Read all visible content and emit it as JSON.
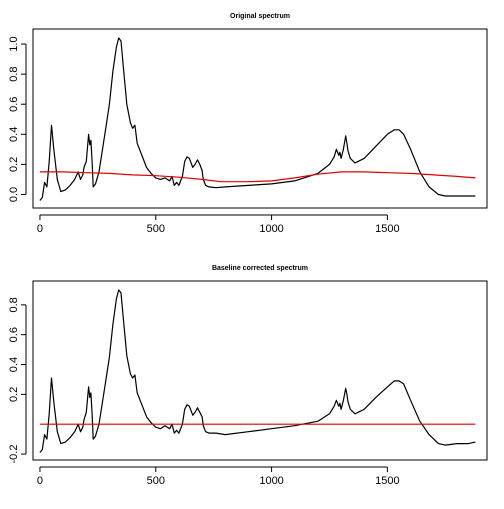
{
  "chart_data": [
    {
      "type": "line",
      "title": "Original spectrum",
      "xlabel": "",
      "ylabel": "",
      "xlim": [
        -30,
        1930
      ],
      "ylim": [
        -0.09,
        1.1
      ],
      "x_ticks": [
        0,
        500,
        1000,
        1500
      ],
      "x_tick_labels": [
        "0",
        "500",
        "1000",
        "1500"
      ],
      "y_ticks": [
        0.0,
        0.2,
        0.4,
        0.6,
        0.8,
        1.0
      ],
      "y_tick_labels": [
        "0.0",
        "0.2",
        "0.4",
        "0.6",
        "0.8",
        "1.0"
      ],
      "series": [
        {
          "color": "#000000",
          "x": [
            0,
            10,
            20,
            30,
            40,
            50,
            60,
            75,
            90,
            110,
            130,
            150,
            165,
            175,
            185,
            190,
            200,
            210,
            215,
            220,
            225,
            230,
            240,
            255,
            270,
            285,
            300,
            315,
            330,
            340,
            350,
            360,
            375,
            390,
            400,
            410,
            420,
            440,
            460,
            480,
            500,
            520,
            540,
            560,
            570,
            580,
            590,
            600,
            615,
            625,
            635,
            645,
            660,
            670,
            680,
            690,
            700,
            705,
            715,
            730,
            760,
            800,
            900,
            1000,
            1100,
            1200,
            1250,
            1270,
            1280,
            1290,
            1295,
            1300,
            1310,
            1320,
            1325,
            1330,
            1340,
            1360,
            1400,
            1450,
            1500,
            1530,
            1550,
            1570,
            1600,
            1640,
            1680,
            1720,
            1750,
            1800,
            1850,
            1880
          ],
          "values": [
            -0.04,
            -0.02,
            0.08,
            0.05,
            0.22,
            0.46,
            0.3,
            0.1,
            0.02,
            0.03,
            0.06,
            0.1,
            0.15,
            0.1,
            0.13,
            0.18,
            0.22,
            0.4,
            0.33,
            0.36,
            0.22,
            0.05,
            0.07,
            0.15,
            0.3,
            0.45,
            0.6,
            0.82,
            0.98,
            1.04,
            1.02,
            0.85,
            0.6,
            0.48,
            0.44,
            0.46,
            0.34,
            0.26,
            0.18,
            0.14,
            0.11,
            0.1,
            0.11,
            0.09,
            0.12,
            0.06,
            0.08,
            0.06,
            0.12,
            0.22,
            0.25,
            0.24,
            0.18,
            0.2,
            0.23,
            0.2,
            0.16,
            0.1,
            0.06,
            0.05,
            0.045,
            0.05,
            0.06,
            0.07,
            0.09,
            0.14,
            0.2,
            0.25,
            0.3,
            0.26,
            0.28,
            0.24,
            0.3,
            0.39,
            0.34,
            0.29,
            0.24,
            0.21,
            0.24,
            0.32,
            0.4,
            0.43,
            0.43,
            0.4,
            0.3,
            0.15,
            0.05,
            0.0,
            -0.01,
            -0.01,
            -0.01,
            -0.01
          ]
        },
        {
          "color": "#e00000",
          "x": [
            0,
            100,
            200,
            300,
            400,
            500,
            600,
            700,
            780,
            900,
            1000,
            1100,
            1200,
            1300,
            1400,
            1500,
            1600,
            1700,
            1800,
            1880
          ],
          "values": [
            0.15,
            0.15,
            0.145,
            0.14,
            0.13,
            0.125,
            0.115,
            0.1,
            0.085,
            0.085,
            0.09,
            0.11,
            0.135,
            0.15,
            0.15,
            0.145,
            0.14,
            0.13,
            0.12,
            0.11
          ]
        }
      ]
    },
    {
      "type": "line",
      "title": "Baseline corrected spectrum",
      "xlabel": "",
      "ylabel": "",
      "xlim": [
        -30,
        1930
      ],
      "ylim": [
        -0.24,
        0.96
      ],
      "x_ticks": [
        0,
        500,
        1000,
        1500
      ],
      "x_tick_labels": [
        "0",
        "500",
        "1000",
        "1500"
      ],
      "y_ticks": [
        -0.2,
        0.2,
        0.4,
        0.6,
        0.8
      ],
      "y_tick_labels": [
        "-0.2",
        "0.2",
        "0.4",
        "0.6",
        "0.8"
      ],
      "series": [
        {
          "color": "#000000",
          "x": [
            0,
            10,
            20,
            30,
            40,
            50,
            60,
            75,
            90,
            110,
            130,
            150,
            165,
            175,
            185,
            190,
            200,
            210,
            215,
            220,
            225,
            230,
            240,
            255,
            270,
            285,
            300,
            315,
            330,
            340,
            350,
            360,
            375,
            390,
            400,
            410,
            420,
            440,
            460,
            480,
            500,
            520,
            540,
            560,
            570,
            580,
            590,
            600,
            615,
            625,
            635,
            645,
            660,
            670,
            680,
            690,
            700,
            705,
            715,
            730,
            760,
            800,
            900,
            1000,
            1100,
            1200,
            1250,
            1270,
            1280,
            1290,
            1295,
            1300,
            1310,
            1320,
            1325,
            1330,
            1340,
            1360,
            1400,
            1450,
            1500,
            1530,
            1550,
            1570,
            1600,
            1640,
            1680,
            1720,
            1750,
            1800,
            1850,
            1880
          ],
          "values": [
            -0.19,
            -0.17,
            -0.07,
            -0.1,
            0.07,
            0.31,
            0.15,
            -0.05,
            -0.13,
            -0.12,
            -0.09,
            -0.05,
            0.0,
            -0.05,
            -0.02,
            0.03,
            0.08,
            0.25,
            0.18,
            0.21,
            0.07,
            -0.1,
            -0.08,
            0.0,
            0.15,
            0.3,
            0.45,
            0.67,
            0.84,
            0.9,
            0.88,
            0.71,
            0.46,
            0.34,
            0.31,
            0.33,
            0.21,
            0.13,
            0.05,
            0.01,
            -0.02,
            -0.03,
            -0.01,
            -0.03,
            0.0,
            -0.06,
            -0.04,
            -0.06,
            0.0,
            0.1,
            0.13,
            0.12,
            0.06,
            0.08,
            0.11,
            0.08,
            0.05,
            -0.01,
            -0.05,
            -0.06,
            -0.06,
            -0.07,
            -0.05,
            -0.03,
            -0.01,
            0.02,
            0.07,
            0.12,
            0.16,
            0.12,
            0.14,
            0.1,
            0.16,
            0.24,
            0.2,
            0.15,
            0.1,
            0.07,
            0.1,
            0.18,
            0.25,
            0.29,
            0.29,
            0.27,
            0.16,
            0.02,
            -0.07,
            -0.13,
            -0.14,
            -0.13,
            -0.13,
            -0.12
          ]
        },
        {
          "color": "#e00000",
          "x": [
            0,
            1880
          ],
          "values": [
            0,
            0
          ]
        }
      ]
    }
  ]
}
